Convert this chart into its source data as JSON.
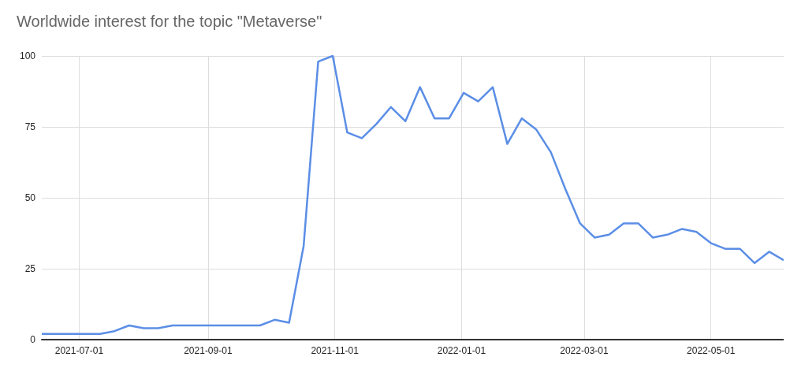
{
  "chart_data": {
    "type": "line",
    "title": "Worldwide interest for the topic \"Metaverse\"",
    "x": [
      "2021-06-13",
      "2021-06-20",
      "2021-06-27",
      "2021-07-04",
      "2021-07-11",
      "2021-07-18",
      "2021-07-25",
      "2021-08-01",
      "2021-08-08",
      "2021-08-15",
      "2021-08-22",
      "2021-08-29",
      "2021-09-05",
      "2021-09-12",
      "2021-09-19",
      "2021-09-26",
      "2021-10-03",
      "2021-10-10",
      "2021-10-17",
      "2021-10-24",
      "2021-10-31",
      "2021-11-07",
      "2021-11-14",
      "2021-11-21",
      "2021-11-28",
      "2021-12-05",
      "2021-12-12",
      "2021-12-19",
      "2021-12-26",
      "2022-01-02",
      "2022-01-09",
      "2022-01-16",
      "2022-01-23",
      "2022-01-30",
      "2022-02-06",
      "2022-02-13",
      "2022-02-20",
      "2022-02-27",
      "2022-03-06",
      "2022-03-13",
      "2022-03-20",
      "2022-03-27",
      "2022-04-03",
      "2022-04-10",
      "2022-04-17",
      "2022-04-24",
      "2022-05-01",
      "2022-05-08",
      "2022-05-15",
      "2022-05-22",
      "2022-05-29",
      "2022-06-05"
    ],
    "series": [
      {
        "color": "#5b8ee6",
        "values": [
          2,
          2,
          2,
          2,
          2,
          3,
          5,
          4,
          4,
          5,
          5,
          5,
          5,
          5,
          5,
          5,
          7,
          6,
          33,
          98,
          100,
          73,
          71,
          76,
          82,
          77,
          89,
          78,
          78,
          87,
          84,
          89,
          69,
          78,
          74,
          66,
          53,
          41,
          36,
          37,
          41,
          41,
          36,
          37,
          39,
          38,
          34,
          32,
          32,
          27,
          31,
          28
        ]
      }
    ],
    "xlim": [
      "2021-06-13",
      "2022-06-05"
    ],
    "xticks": [
      "2021-07-01",
      "2021-09-01",
      "2021-11-01",
      "2022-01-01",
      "2022-03-01",
      "2022-05-01"
    ],
    "ylim": [
      0,
      100
    ],
    "yticks": [
      0,
      25,
      50,
      75,
      100
    ],
    "grid": true,
    "marker": "none",
    "line_style": "solid"
  }
}
